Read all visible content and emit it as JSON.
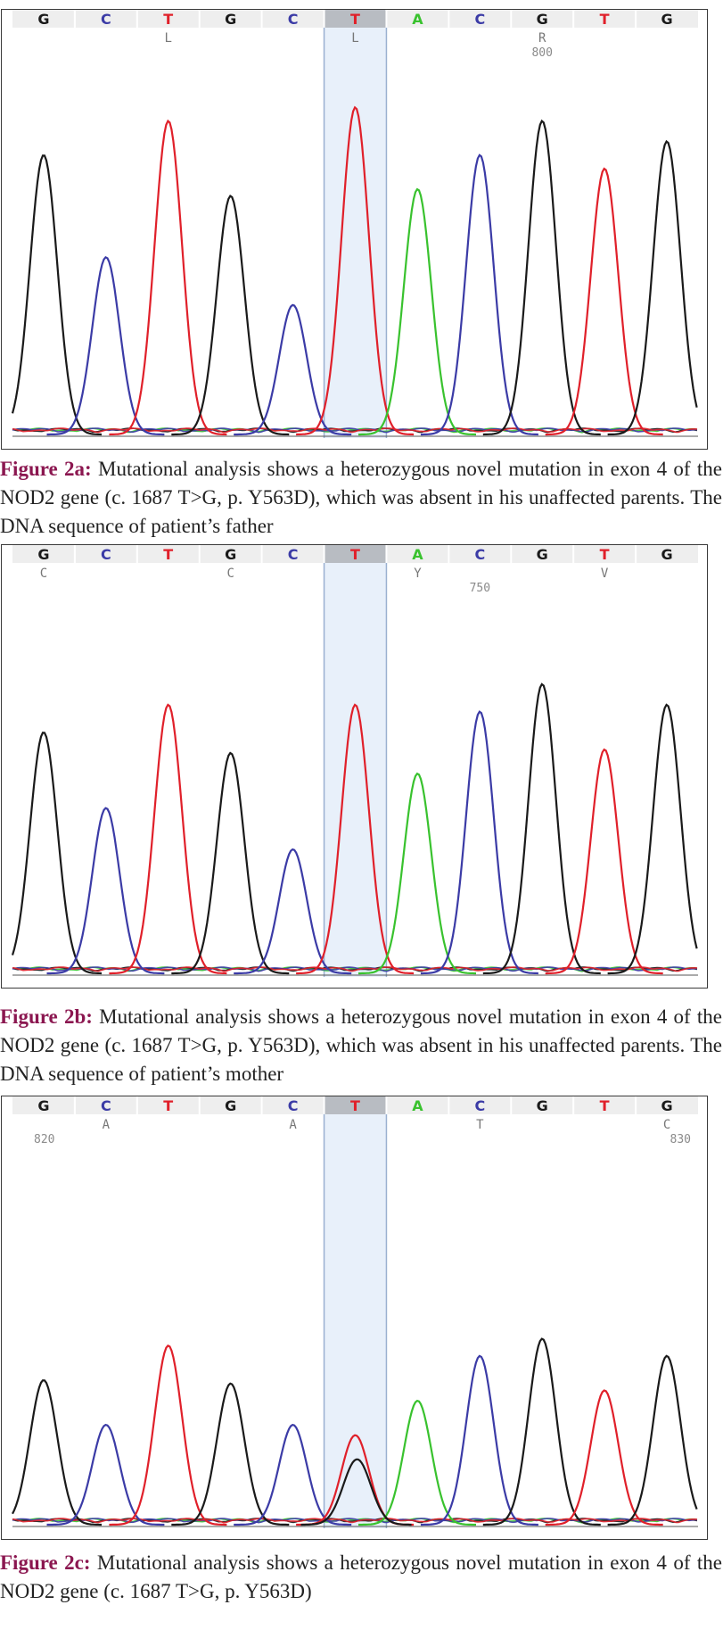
{
  "colors": {
    "G": "#1a1a1a",
    "C": "#3b3ba6",
    "T": "#e0202a",
    "A": "#39c22e",
    "caption_label": "#8b1750",
    "highlight": "#e8f0fa",
    "header_band": "#eeeeee",
    "header_highlight": "#b8bcc2"
  },
  "figures": [
    {
      "id": "2a",
      "bases": [
        "G",
        "C",
        "T",
        "G",
        "C",
        "T",
        "A",
        "C",
        "G",
        "T",
        "G"
      ],
      "highlight_index": 5,
      "codes": [
        {
          "index": 2,
          "text": "L"
        },
        {
          "index": 5,
          "text": "L"
        },
        {
          "index": 8,
          "text": "R"
        }
      ],
      "positions": [
        {
          "index": 8,
          "text": "800"
        }
      ],
      "peaks": [
        0.82,
        0.52,
        0.92,
        0.7,
        0.38,
        0.96,
        0.72,
        0.82,
        0.92,
        0.78,
        0.86
      ],
      "caption_label": "Figure 2a:",
      "caption_text": " Mutational analysis shows a heterozygous novel mutation in exon 4 of the NOD2 gene (c. 1687 T>G, p. Y563D), which was absent in his unaffected parents. The DNA sequence of patient’s father"
    },
    {
      "id": "2b",
      "bases": [
        "G",
        "C",
        "T",
        "G",
        "C",
        "T",
        "A",
        "C",
        "G",
        "T",
        "G"
      ],
      "highlight_index": 5,
      "codes": [
        {
          "index": 0,
          "text": "C"
        },
        {
          "index": 3,
          "text": "C"
        },
        {
          "index": 6,
          "text": "Y"
        },
        {
          "index": 9,
          "text": "V"
        }
      ],
      "positions": [
        {
          "index": 7,
          "text": "750"
        }
      ],
      "peaks": [
        0.7,
        0.48,
        0.78,
        0.64,
        0.36,
        0.78,
        0.58,
        0.76,
        0.84,
        0.65,
        0.78
      ],
      "caption_label": "Figure 2b:",
      "caption_text": " Mutational analysis shows a heterozygous novel mutation in exon 4 of the NOD2 gene (c. 1687 T>G, p. Y563D), which was absent in his unaffected parents. The DNA sequence of patient’s mother"
    },
    {
      "id": "2c",
      "bases": [
        "G",
        "C",
        "T",
        "G",
        "C",
        "T",
        "A",
        "C",
        "G",
        "T",
        "G"
      ],
      "highlight_index": 5,
      "codes": [
        {
          "index": 1,
          "text": "A"
        },
        {
          "index": 4,
          "text": "A"
        },
        {
          "index": 7,
          "text": "T"
        },
        {
          "index": 10,
          "text": "C"
        }
      ],
      "positions": [
        {
          "index": 0,
          "text": "820"
        },
        {
          "index": 10,
          "text": "830"
        }
      ],
      "peaks": [
        0.42,
        0.29,
        0.52,
        0.41,
        0.29,
        0.26,
        0.36,
        0.49,
        0.54,
        0.39,
        0.49
      ],
      "secondary_peak": {
        "index": 5,
        "base": "G",
        "height": 0.19
      },
      "caption_label": "Figure 2c:",
      "caption_text": " Mutational analysis shows a heterozygous novel mutation in exon 4 of the NOD2 gene (c. 1687 T>G, p. Y563D)"
    }
  ]
}
